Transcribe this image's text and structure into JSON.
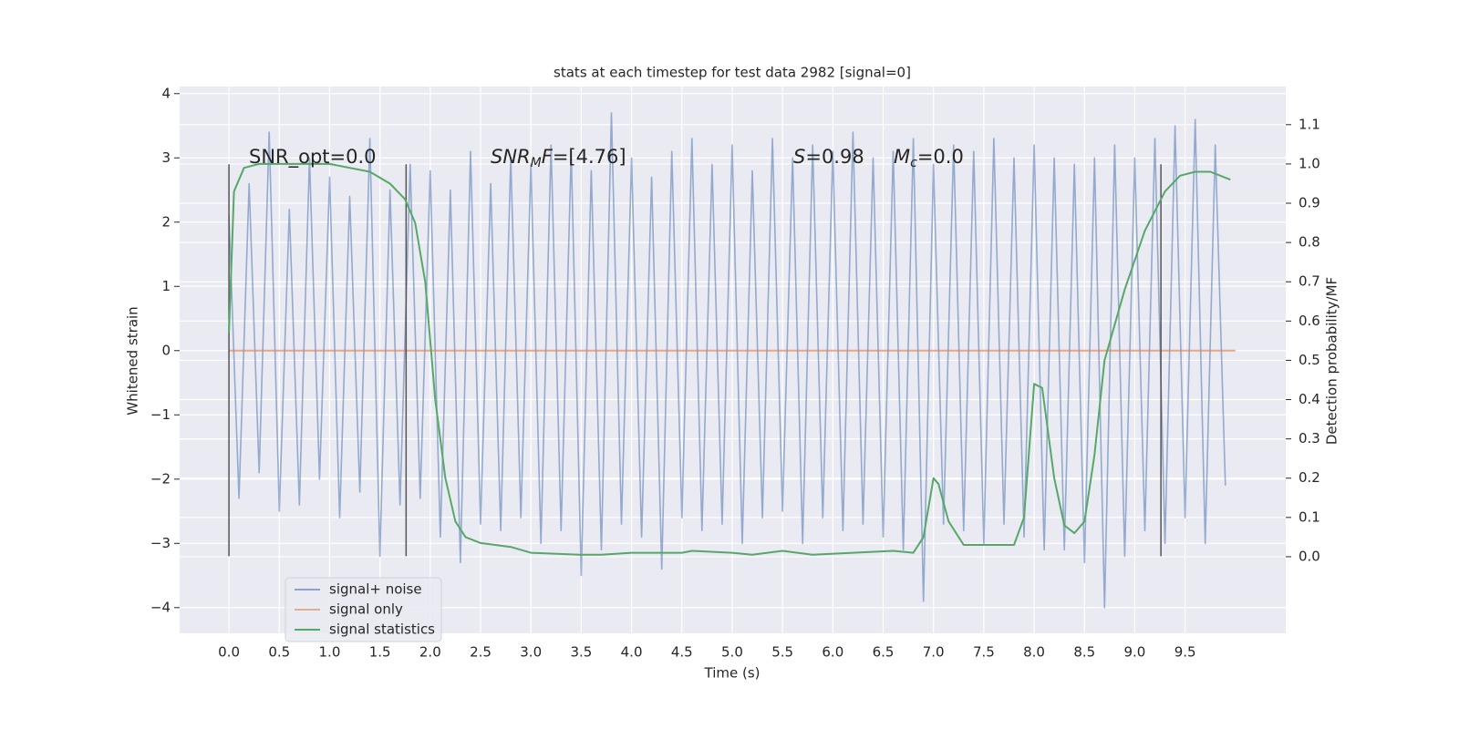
{
  "chart_data": {
    "type": "line",
    "title": "stats at each timestep for test data 2982 [signal=0]",
    "xlabel": "Time (s)",
    "ylabel": "Whitened strain",
    "y2label": "Detection probability/MF",
    "xlim": [
      -0.49,
      10.5
    ],
    "ylim": [
      -4.4,
      4.11
    ],
    "y2lim": [
      -0.195,
      1.197
    ],
    "xticks": [
      {
        "value": 0,
        "label": "0.0"
      },
      0.5,
      {
        "value": 1,
        "label": "1.0"
      },
      1.5,
      {
        "value": 2,
        "label": "2.0"
      },
      2.5,
      {
        "value": 3,
        "label": "3.0"
      },
      3.5,
      {
        "value": 4,
        "label": "4.0"
      },
      4.5,
      {
        "value": 5,
        "label": "5.0"
      },
      5.5,
      {
        "value": 6,
        "label": "6.0"
      },
      6.5,
      {
        "value": 7,
        "label": "7.0"
      },
      7.5,
      {
        "value": 8,
        "label": "8.0"
      },
      8.5,
      {
        "value": 9,
        "label": "9.0"
      },
      9.5
    ],
    "yticks": [
      {
        "value": -4,
        "label": "−4"
      },
      {
        "value": -3,
        "label": "−3"
      },
      {
        "value": -2,
        "label": "−2"
      },
      {
        "value": -1,
        "label": "−1"
      },
      0,
      1,
      2,
      3,
      4
    ],
    "y2ticks": [
      {
        "value": 0,
        "label": "0.0"
      },
      0.1,
      0.2,
      0.3,
      0.4,
      0.5,
      0.6,
      0.7,
      0.8,
      0.9,
      {
        "value": 1,
        "label": "1.0"
      },
      1.1
    ],
    "grid": true,
    "legend": "lower left",
    "vlines": [
      0,
      1.76,
      9.26
    ],
    "vline_range": [
      -3.2,
      2.9
    ],
    "vline_color": "#555555",
    "annotations": [
      {
        "parts": [
          {
            "text": "SNR_opt=0.0"
          }
        ]
      },
      {
        "parts": [
          {
            "text": "SNR",
            "italic": true
          },
          {
            "text": "M",
            "italic": true,
            "sub": true
          },
          {
            "text": "F",
            "italic": true
          },
          {
            "text": "=[4.76]"
          }
        ]
      },
      {
        "parts": [
          {
            "text": "S",
            "italic": true
          },
          {
            "text": "=0.98"
          }
        ]
      },
      {
        "parts": [
          {
            "text": "M",
            "italic": true
          },
          {
            "text": "c",
            "italic": true,
            "sub": true
          },
          {
            "text": "=0.0"
          }
        ]
      }
    ],
    "series": [
      {
        "name": "signal+ noise",
        "color": "#4c72b0",
        "x": [
          0.0,
          0.1,
          0.2,
          0.3,
          0.4,
          0.5,
          0.6,
          0.7,
          0.8,
          0.9,
          1.0,
          1.1,
          1.2,
          1.3,
          1.4,
          1.5,
          1.6,
          1.7,
          1.8,
          1.9,
          2.0,
          2.1,
          2.2,
          2.3,
          2.4,
          2.5,
          2.6,
          2.7,
          2.8,
          2.9,
          3.0,
          3.1,
          3.2,
          3.3,
          3.4,
          3.5,
          3.6,
          3.7,
          3.8,
          3.9,
          4.0,
          4.1,
          4.2,
          4.3,
          4.4,
          4.5,
          4.6,
          4.7,
          4.8,
          4.9,
          5.0,
          5.1,
          5.2,
          5.3,
          5.4,
          5.5,
          5.6,
          5.7,
          5.8,
          5.9,
          6.0,
          6.1,
          6.2,
          6.3,
          6.4,
          6.5,
          6.6,
          6.7,
          6.8,
          6.9,
          7.0,
          7.1,
          7.2,
          7.3,
          7.4,
          7.5,
          7.6,
          7.7,
          7.8,
          7.9,
          8.0,
          8.1,
          8.2,
          8.3,
          8.4,
          8.5,
          8.6,
          8.7,
          8.8,
          8.9,
          9.0,
          9.1,
          9.2,
          9.3,
          9.4,
          9.5,
          9.6,
          9.7,
          9.8,
          9.9
        ],
        "values": [
          2.1,
          -2.3,
          2.6,
          -1.9,
          3.4,
          -2.5,
          2.2,
          -2.4,
          3.0,
          -2.0,
          2.7,
          -2.6,
          2.4,
          -2.2,
          3.3,
          -3.2,
          2.5,
          -2.4,
          2.9,
          -2.3,
          2.8,
          -2.9,
          2.5,
          -3.3,
          3.1,
          -2.7,
          2.6,
          -2.8,
          3.0,
          -2.6,
          2.9,
          -3.0,
          3.2,
          -2.8,
          3.1,
          -3.5,
          2.8,
          -3.1,
          3.7,
          -2.7,
          3.0,
          -2.9,
          2.7,
          -3.4,
          3.1,
          -2.6,
          3.3,
          -2.8,
          2.9,
          -2.7,
          3.2,
          -3.0,
          2.8,
          -2.6,
          3.3,
          -2.5,
          3.0,
          -3.0,
          3.2,
          -2.6,
          3.1,
          -2.8,
          3.4,
          -2.7,
          3.0,
          -2.9,
          3.1,
          -3.1,
          3.3,
          -3.9,
          2.9,
          -2.7,
          3.2,
          -2.8,
          3.1,
          -3.0,
          3.3,
          -2.7,
          3.0,
          -2.9,
          3.2,
          -3.1,
          3.0,
          -3.1,
          2.9,
          -3.3,
          3.0,
          -4.0,
          3.2,
          -3.2,
          3.0,
          -2.8,
          3.3,
          -3.0,
          3.5,
          -2.6,
          3.6,
          -3.0,
          3.2,
          -2.1
        ]
      },
      {
        "name": "signal only",
        "color": "#dd8452",
        "x": [
          0,
          10
        ],
        "values": [
          0,
          0
        ]
      },
      {
        "name": "signal statistics",
        "color": "#55a868",
        "axis": "y2",
        "x": [
          0.0,
          0.05,
          0.15,
          0.3,
          0.6,
          1.0,
          1.2,
          1.4,
          1.6,
          1.75,
          1.85,
          1.95,
          2.05,
          2.15,
          2.25,
          2.35,
          2.5,
          2.8,
          3.0,
          3.5,
          3.7,
          4.0,
          4.5,
          4.6,
          5.0,
          5.2,
          5.5,
          5.8,
          6.2,
          6.6,
          6.8,
          6.9,
          7.0,
          7.05,
          7.15,
          7.3,
          7.8,
          7.9,
          8.0,
          8.08,
          8.2,
          8.3,
          8.4,
          8.5,
          8.6,
          8.7,
          8.9,
          9.1,
          9.3,
          9.45,
          9.6,
          9.75,
          9.85,
          9.95
        ],
        "values": [
          0.57,
          0.93,
          0.99,
          1.0,
          1.0,
          1.0,
          0.99,
          0.98,
          0.95,
          0.91,
          0.85,
          0.7,
          0.4,
          0.2,
          0.09,
          0.05,
          0.035,
          0.025,
          0.01,
          0.005,
          0.005,
          0.01,
          0.01,
          0.015,
          0.01,
          0.005,
          0.015,
          0.005,
          0.01,
          0.015,
          0.01,
          0.05,
          0.2,
          0.185,
          0.09,
          0.03,
          0.03,
          0.1,
          0.44,
          0.43,
          0.2,
          0.08,
          0.06,
          0.09,
          0.26,
          0.5,
          0.68,
          0.83,
          0.93,
          0.97,
          0.98,
          0.98,
          0.97,
          0.96
        ]
      }
    ]
  }
}
